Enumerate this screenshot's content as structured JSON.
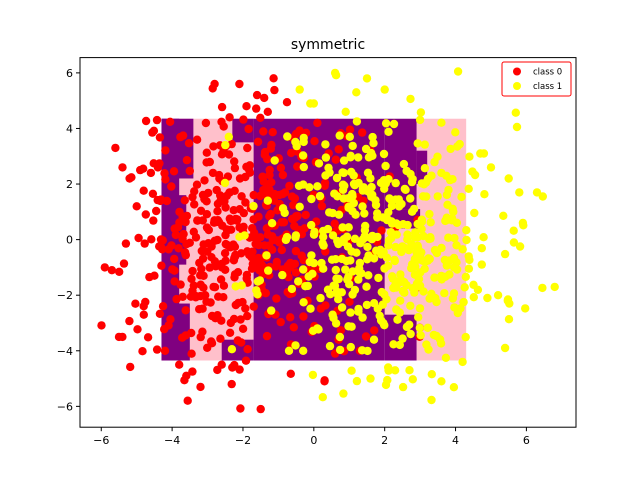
{
  "chart_data": {
    "type": "scatter",
    "title": "symmetric",
    "xlabel": "",
    "ylabel": "",
    "xlim": [
      -6.6,
      7.4
    ],
    "ylim": [
      -6.75,
      6.55
    ],
    "xticks": [
      -6,
      -4,
      -2,
      0,
      2,
      4,
      6
    ],
    "yticks": [
      -6,
      -4,
      -2,
      0,
      2,
      4,
      6
    ],
    "tick_labels_x": [
      "−6",
      "−4",
      "−2",
      "0",
      "2",
      "4",
      "6"
    ],
    "tick_labels_y": [
      "−6",
      "−4",
      "−2",
      "0",
      "2",
      "4",
      "6"
    ],
    "grid": false,
    "legend_position": "top-right",
    "decision_region": {
      "x_range": [
        -4.3,
        4.3
      ],
      "y_range": [
        -4.35,
        4.35
      ],
      "colors": {
        "class_0": "#ffc0cb",
        "class_1": "#800080"
      },
      "class_0_rects": [
        {
          "x": [
            -4.3,
            -1.7
          ],
          "y": [
            -4.35,
            4.35
          ]
        },
        {
          "x": [
            2.9,
            4.3
          ],
          "y": [
            -4.35,
            4.35
          ]
        },
        {
          "x": [
            2.0,
            3.0
          ],
          "y": [
            -2.7,
            1.1
          ]
        }
      ],
      "class_1_rects": [
        {
          "x": [
            -4.3,
            -3.8
          ],
          "y": [
            -4.35,
            4.35
          ]
        },
        {
          "x": [
            -4.3,
            -3.4
          ],
          "y": [
            2.2,
            4.35
          ]
        },
        {
          "x": [
            -4.3,
            -3.5
          ],
          "y": [
            -4.35,
            -2.3
          ]
        },
        {
          "x": [
            -4.3,
            -3.6
          ],
          "y": [
            -0.9,
            1.6
          ]
        },
        {
          "x": [
            -1.7,
            2.0
          ],
          "y": [
            -4.35,
            4.35
          ]
        },
        {
          "x": [
            2.0,
            2.9
          ],
          "y": [
            1.1,
            4.35
          ]
        },
        {
          "x": [
            2.0,
            2.9
          ],
          "y": [
            -4.35,
            -2.7
          ]
        },
        {
          "x": [
            1.4,
            3.0
          ],
          "y": [
            0.4,
            1.1
          ]
        },
        {
          "x": [
            2.9,
            3.2
          ],
          "y": [
            2.0,
            3.2
          ]
        },
        {
          "x": [
            -2.3,
            -1.7
          ],
          "y": [
            3.5,
            4.35
          ]
        },
        {
          "x": [
            -2.6,
            -1.7
          ],
          "y": [
            -4.35,
            -3.6
          ]
        }
      ]
    },
    "series": [
      {
        "name": "class 0",
        "color": "#ff0000",
        "seed": 7,
        "count": 500,
        "center": [
          -2.0,
          0.0
        ],
        "spread": [
          1.6,
          2.3
        ],
        "points": [
          [
            -5.9,
            -1.0
          ],
          [
            -5.7,
            -1.1
          ],
          [
            -5.6,
            3.3
          ],
          [
            -5.5,
            -3.5
          ],
          [
            -5.4,
            2.6
          ],
          [
            -5.2,
            2.2
          ],
          [
            -5.0,
            1.2
          ],
          [
            -4.9,
            2.5
          ],
          [
            -4.8,
            -2.7
          ],
          [
            -4.6,
            2.4
          ],
          [
            -4.5,
            -1.3
          ],
          [
            -4.4,
            2.6
          ],
          [
            -4.2,
            -4.0
          ],
          [
            -3.8,
            -4.5
          ],
          [
            -3.6,
            -4.9
          ],
          [
            -3.2,
            -5.3
          ],
          [
            -2.8,
            5.6
          ],
          [
            -2.6,
            -4.5
          ],
          [
            -2.3,
            -4.6
          ],
          [
            -2.1,
            5.6
          ],
          [
            -1.9,
            4.8
          ],
          [
            -1.6,
            5.2
          ],
          [
            -1.4,
            5.1
          ],
          [
            -1.3,
            4.6
          ],
          [
            -1.5,
            -6.1
          ],
          [
            0.3,
            -5.1
          ],
          [
            0.6,
            -4.1
          ],
          [
            0.7,
            -3.6
          ],
          [
            1.3,
            -4.0
          ],
          [
            1.6,
            3.2
          ],
          [
            1.4,
            1.4
          ],
          [
            -0.5,
            3.8
          ],
          [
            0.1,
            4.2
          ]
        ]
      },
      {
        "name": "class 1",
        "color": "#ffff00",
        "seed": 11,
        "count": 500,
        "center": [
          2.0,
          0.0
        ],
        "spread": [
          1.6,
          2.3
        ],
        "points": [
          [
            0.6,
            6.0
          ],
          [
            1.5,
            5.8
          ],
          [
            1.2,
            5.3
          ],
          [
            2.0,
            5.4
          ],
          [
            0.9,
            4.6
          ],
          [
            -0.4,
            5.4
          ],
          [
            -0.1,
            4.9
          ],
          [
            0.0,
            4.9
          ],
          [
            4.7,
            3.1
          ],
          [
            4.8,
            3.1
          ],
          [
            5.0,
            2.6
          ],
          [
            5.5,
            2.2
          ],
          [
            5.8,
            1.7
          ],
          [
            6.3,
            1.7
          ],
          [
            5.9,
            0.6
          ],
          [
            6.8,
            -1.7
          ],
          [
            5.4,
            -3.9
          ],
          [
            5.2,
            -2.0
          ],
          [
            4.9,
            -2.1
          ],
          [
            4.2,
            -4.4
          ],
          [
            3.6,
            -5.1
          ],
          [
            2.7,
            -4.7
          ],
          [
            2.1,
            -4.6
          ],
          [
            1.6,
            -5.0
          ],
          [
            -2.1,
            0.1
          ],
          [
            -2.4,
            3.7
          ],
          [
            -2.5,
            3.4
          ],
          [
            -1.3,
            1.4
          ],
          [
            -0.7,
            -4.0
          ],
          [
            -0.3,
            -4.0
          ]
        ]
      }
    ]
  }
}
